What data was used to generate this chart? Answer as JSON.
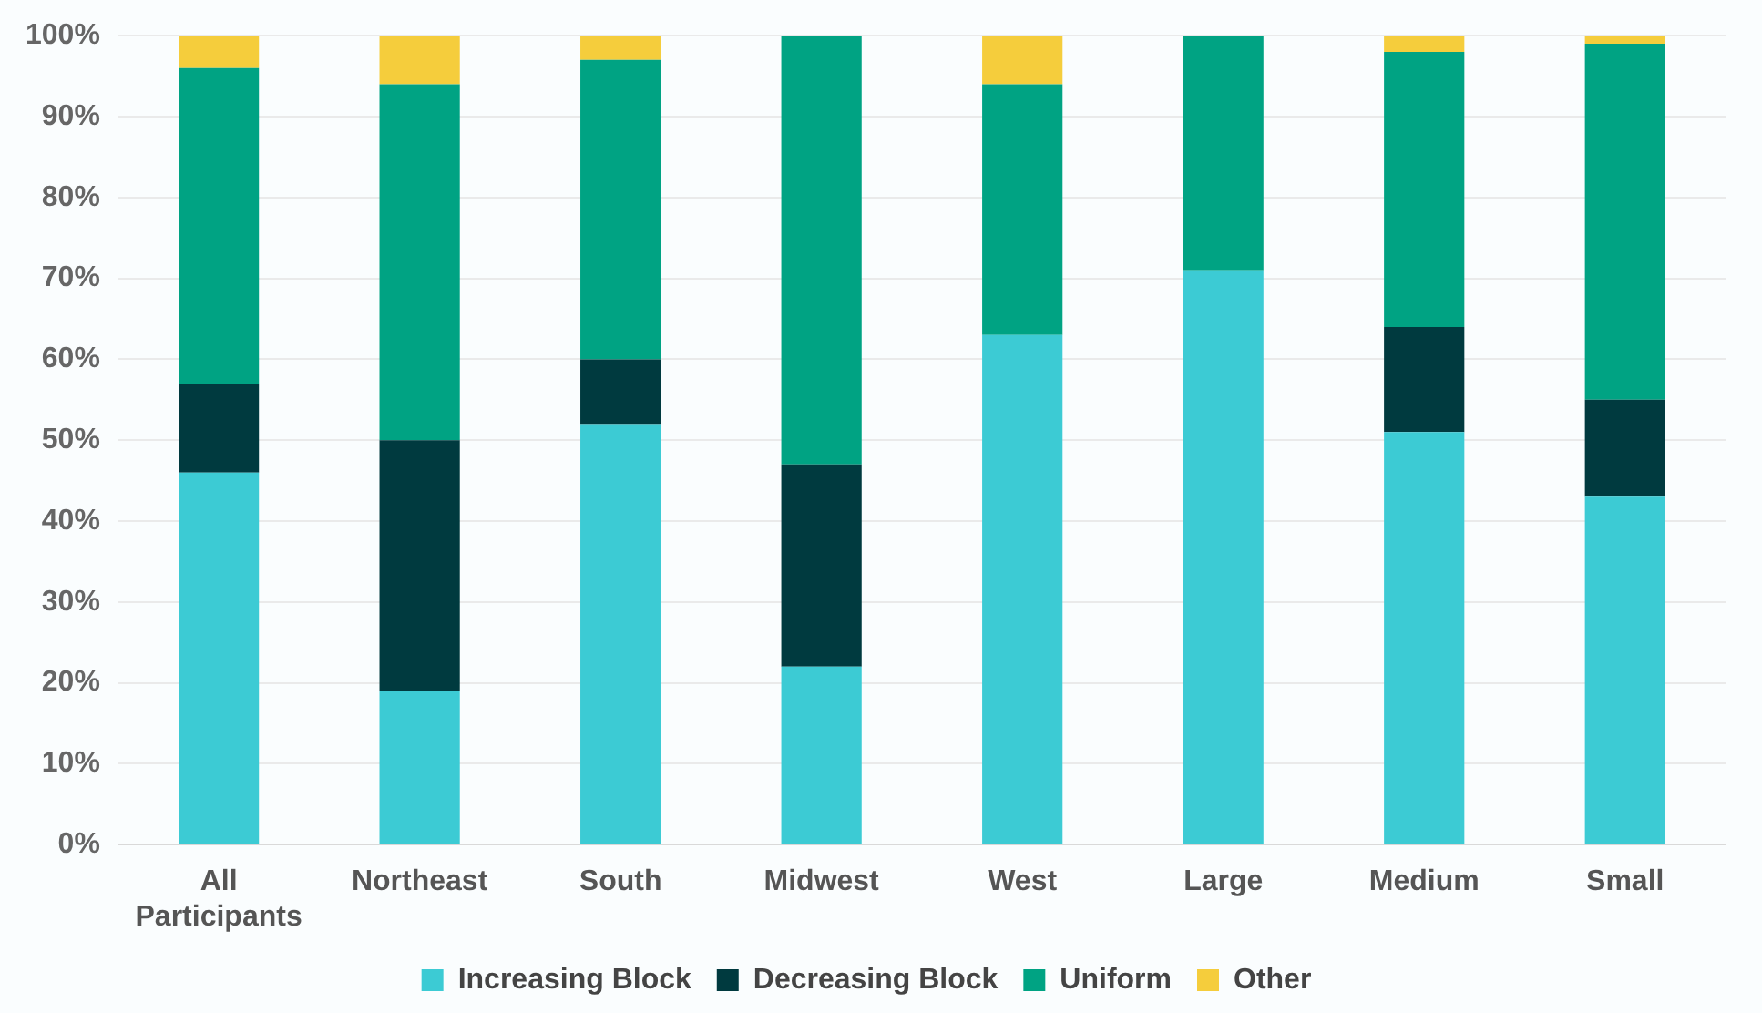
{
  "chart_data": {
    "type": "bar",
    "stacked": true,
    "categories": [
      "All Participants",
      "Northeast",
      "South",
      "Midwest",
      "West",
      "Large",
      "Medium",
      "Small"
    ],
    "series": [
      {
        "name": "Increasing Block",
        "color": "#3ccbd4",
        "values": [
          46,
          19,
          52,
          22,
          63,
          71,
          51,
          43
        ]
      },
      {
        "name": "Decreasing Block",
        "color": "#003a3f",
        "values": [
          11,
          31,
          8,
          25,
          0,
          0,
          13,
          12
        ]
      },
      {
        "name": "Uniform",
        "color": "#00a383",
        "values": [
          39,
          44,
          37,
          53,
          31,
          29,
          34,
          44
        ]
      },
      {
        "name": "Other",
        "color": "#f5cd3c",
        "values": [
          4,
          6,
          3,
          0,
          6,
          0,
          2,
          1
        ]
      }
    ],
    "ylim": [
      0,
      100
    ],
    "yticks": [
      {
        "value": 0,
        "label": "0%"
      },
      {
        "value": 10,
        "label": "10%"
      },
      {
        "value": 20,
        "label": "20%"
      },
      {
        "value": 30,
        "label": "30%"
      },
      {
        "value": 40,
        "label": "40%"
      },
      {
        "value": 50,
        "label": "50%"
      },
      {
        "value": 60,
        "label": "60%"
      },
      {
        "value": 70,
        "label": "70%"
      },
      {
        "value": 80,
        "label": "80%"
      },
      {
        "value": 90,
        "label": "90%"
      },
      {
        "value": 100,
        "label": "100%"
      }
    ],
    "grid": "y",
    "legend": "bottom"
  }
}
